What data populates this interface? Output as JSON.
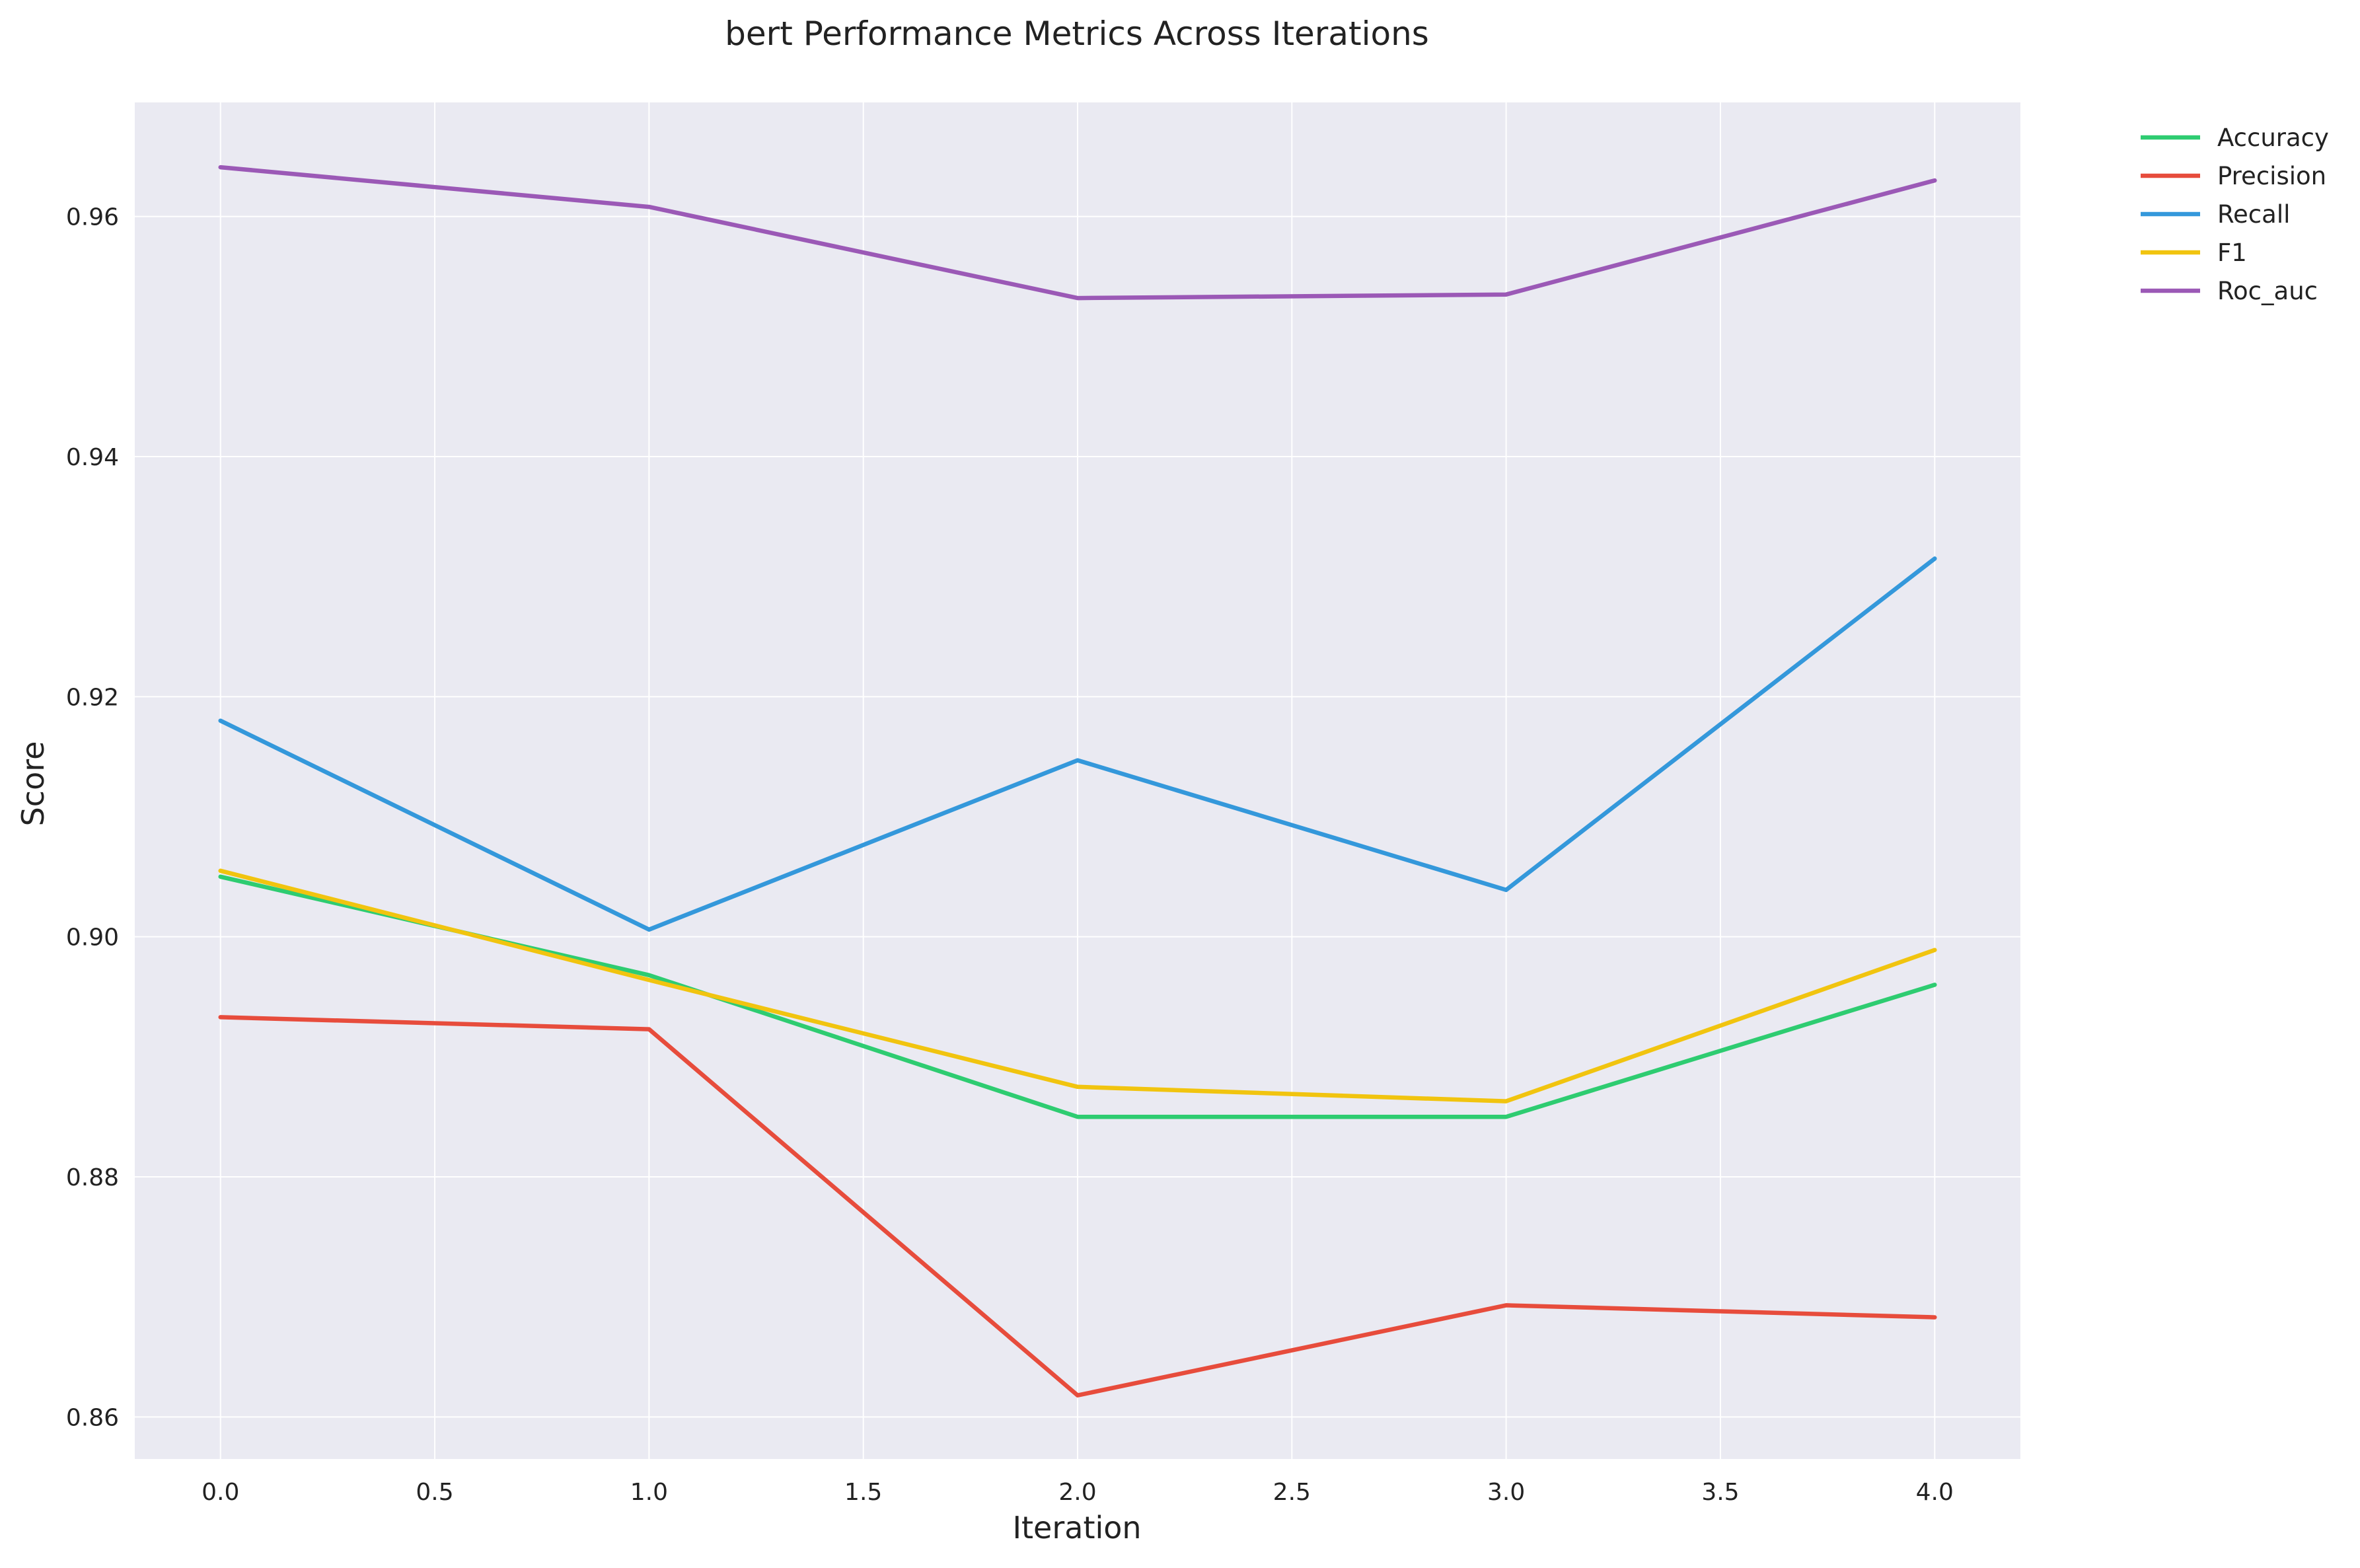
{
  "chart_data": {
    "type": "line",
    "title": "bert Performance Metrics Across Iterations",
    "xlabel": "Iteration",
    "ylabel": "Score",
    "x": [
      0,
      1,
      2,
      3,
      4
    ],
    "xlim": [
      -0.2,
      4.2
    ],
    "ylim": [
      0.8565,
      0.9695
    ],
    "x_ticks": [
      "0.0",
      "0.5",
      "1.0",
      "1.5",
      "2.0",
      "2.5",
      "3.0",
      "3.5",
      "4.0"
    ],
    "x_tick_values": [
      0,
      0.5,
      1,
      1.5,
      2,
      2.5,
      3,
      3.5,
      4
    ],
    "y_ticks": [
      "0.86",
      "0.88",
      "0.90",
      "0.92",
      "0.94",
      "0.96"
    ],
    "y_tick_values": [
      0.86,
      0.88,
      0.9,
      0.92,
      0.94,
      0.96
    ],
    "grid": true,
    "legend_position": "outside-top-right",
    "background": "#eaeaf2",
    "series": [
      {
        "name": "Accuracy",
        "color": "#2ecc71",
        "values": [
          0.905,
          0.8968,
          0.885,
          0.885,
          0.896
        ]
      },
      {
        "name": "Precision",
        "color": "#e74c3c",
        "values": [
          0.8933,
          0.8923,
          0.8618,
          0.8693,
          0.8683
        ]
      },
      {
        "name": "Recall",
        "color": "#3498db",
        "values": [
          0.918,
          0.9006,
          0.9147,
          0.9039,
          0.9315
        ]
      },
      {
        "name": "F1",
        "color": "#f1c40f",
        "values": [
          0.9055,
          0.8964,
          0.8875,
          0.8863,
          0.8989
        ]
      },
      {
        "name": "Roc_auc",
        "color": "#9b59b6",
        "values": [
          0.9641,
          0.9608,
          0.9532,
          0.9535,
          0.963
        ]
      }
    ]
  }
}
